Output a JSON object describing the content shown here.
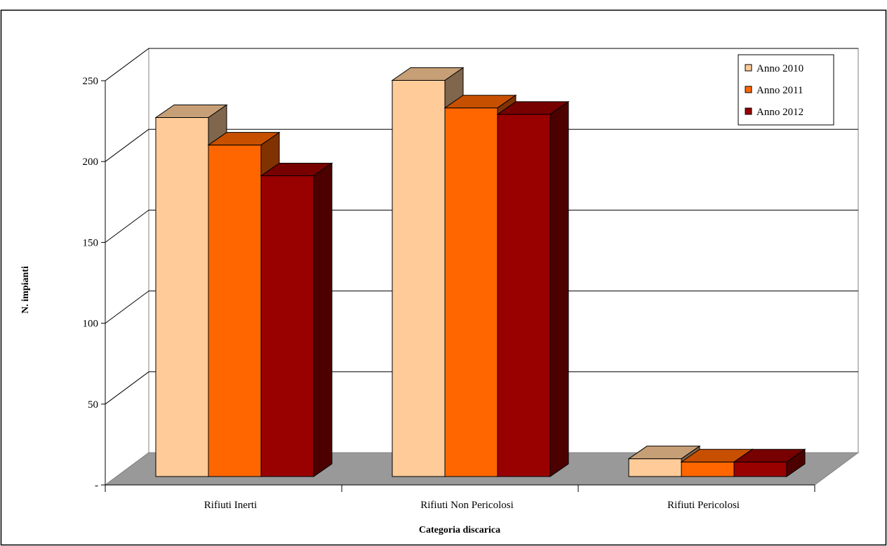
{
  "chart_data": {
    "type": "bar",
    "title": "",
    "xlabel": "Categoria discarica",
    "ylabel": "N. impianti",
    "categories": [
      "Rifiuti Inerti",
      "Rifiuti Non Pericolosi",
      "Rifiuti Pericolosi"
    ],
    "series": [
      {
        "name": "Anno 2010",
        "values": [
          222,
          245,
          11
        ],
        "color": "#FFCC99"
      },
      {
        "name": "Anno 2011",
        "values": [
          205,
          228,
          9
        ],
        "color": "#FF6600"
      },
      {
        "name": "Anno 2012",
        "values": [
          186,
          224,
          9
        ],
        "color": "#990000"
      }
    ],
    "ylim": [
      0,
      250
    ],
    "yticks": [
      0,
      50,
      100,
      150,
      200,
      250
    ],
    "ytick_labels": [
      "-",
      "50",
      "100",
      "150",
      "200",
      "250"
    ],
    "grid": true,
    "legend_position": "top-right",
    "style": "3d-clustered-bar"
  }
}
